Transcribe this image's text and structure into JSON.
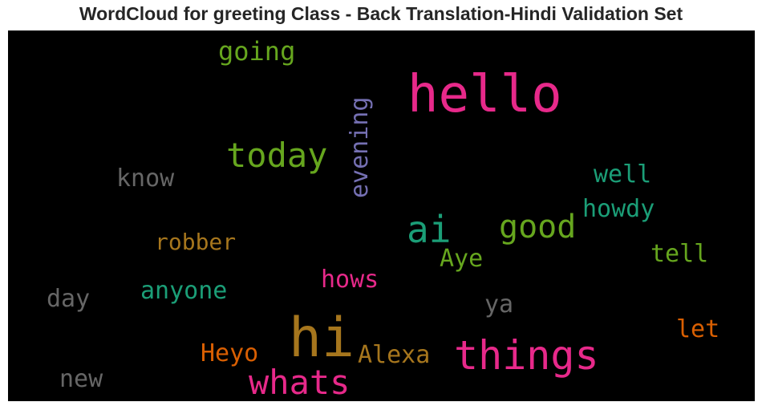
{
  "title": "WordCloud for greeting Class - Back Translation-Hindi Validation Set",
  "chart_data": {
    "type": "wordcloud",
    "background": "#000000",
    "words": [
      {
        "text": "hello",
        "color": "#e7298a",
        "orientation": "horizontal"
      },
      {
        "text": "hi",
        "color": "#a6761d",
        "orientation": "horizontal"
      },
      {
        "text": "things",
        "color": "#e7298a",
        "orientation": "horizontal"
      },
      {
        "text": "whats",
        "color": "#e7298a",
        "orientation": "horizontal"
      },
      {
        "text": "today",
        "color": "#66a61e",
        "orientation": "horizontal"
      },
      {
        "text": "good",
        "color": "#66a61e",
        "orientation": "horizontal"
      },
      {
        "text": "ai",
        "color": "#1b9e77",
        "orientation": "horizontal"
      },
      {
        "text": "evening",
        "color": "#7570b3",
        "orientation": "vertical"
      },
      {
        "text": "going",
        "color": "#66a61e",
        "orientation": "horizontal"
      },
      {
        "text": "know",
        "color": "#666666",
        "orientation": "horizontal"
      },
      {
        "text": "well",
        "color": "#1b9e77",
        "orientation": "horizontal"
      },
      {
        "text": "howdy",
        "color": "#1b9e77",
        "orientation": "horizontal"
      },
      {
        "text": "robber",
        "color": "#a6761d",
        "orientation": "horizontal"
      },
      {
        "text": "Aye",
        "color": "#66a61e",
        "orientation": "horizontal"
      },
      {
        "text": "tell",
        "color": "#66a61e",
        "orientation": "horizontal"
      },
      {
        "text": "hows",
        "color": "#e7298a",
        "orientation": "horizontal"
      },
      {
        "text": "anyone",
        "color": "#1b9e77",
        "orientation": "horizontal"
      },
      {
        "text": "day",
        "color": "#666666",
        "orientation": "horizontal"
      },
      {
        "text": "ya",
        "color": "#666666",
        "orientation": "horizontal"
      },
      {
        "text": "let",
        "color": "#d95f02",
        "orientation": "horizontal"
      },
      {
        "text": "Heyo",
        "color": "#d95f02",
        "orientation": "horizontal"
      },
      {
        "text": "Alexa",
        "color": "#a6761d",
        "orientation": "horizontal"
      },
      {
        "text": "new",
        "color": "#666666",
        "orientation": "horizontal"
      }
    ]
  }
}
